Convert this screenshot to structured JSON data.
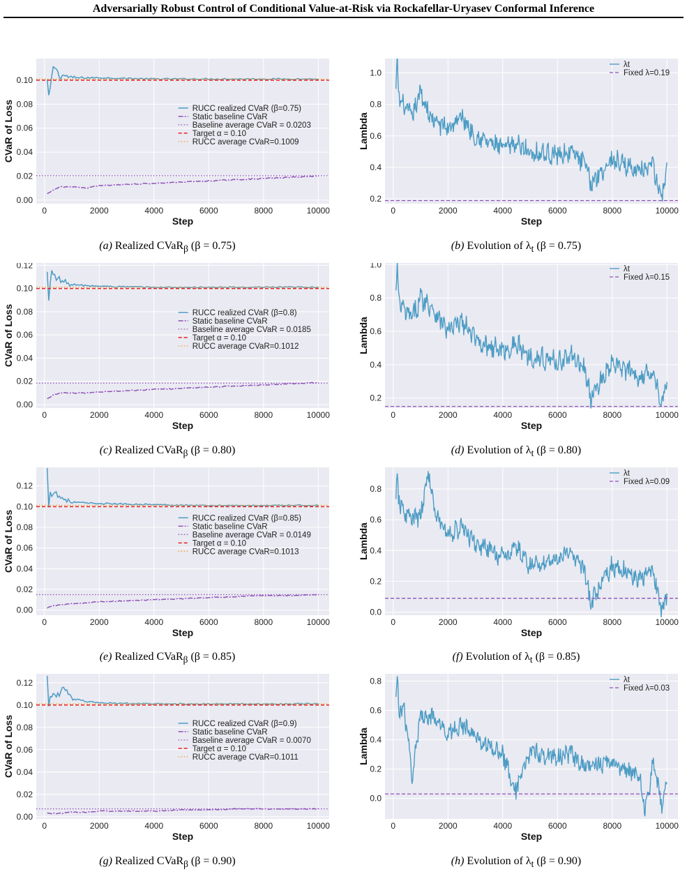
{
  "title": "Adversarially Robust Control of Conditional Value-at-Risk via Rockafellar-Uryasev Conformal Inference",
  "colors": {
    "rucc": "#4c9cc4",
    "baseline": "#8e52b8",
    "target": "#e8211f",
    "rucc_avg": "#f0a030",
    "bg": "#eaeaf2",
    "grid": "#ffffff"
  },
  "captions": [
    {
      "tag": "(a)",
      "text": "Realized CVaR",
      "sub": "β",
      "param": "(β = 0.75)"
    },
    {
      "tag": "(b)",
      "text": "Evolution of λ",
      "sub": "t",
      "param": "(β = 0.75)"
    },
    {
      "tag": "(c)",
      "text": "Realized CVaR",
      "sub": "β",
      "param": "(β = 0.80)"
    },
    {
      "tag": "(d)",
      "text": "Evolution of λ",
      "sub": "t",
      "param": "(β = 0.80)"
    },
    {
      "tag": "(e)",
      "text": "Realized CVaR",
      "sub": "β",
      "param": "(β = 0.85)"
    },
    {
      "tag": "(f)",
      "text": "Evolution of λ",
      "sub": "t",
      "param": "(β = 0.85)"
    },
    {
      "tag": "(g)",
      "text": "Realized CVaR",
      "sub": "β",
      "param": "(β = 0.90)"
    },
    {
      "tag": "(h)",
      "text": "Evolution of λ",
      "sub": "t",
      "param": "(β = 0.90)"
    }
  ],
  "chart_data": [
    {
      "type": "line",
      "xlabel": "Step",
      "ylabel": "CVaR of Loss",
      "xlim": [
        -300,
        10400
      ],
      "ylim": [
        -0.003,
        0.118
      ],
      "xticks": [
        0,
        2000,
        4000,
        6000,
        8000,
        10000
      ],
      "yticks": [
        0.0,
        0.02,
        0.04,
        0.06,
        0.08,
        0.1
      ],
      "legend": "center-right",
      "series": [
        {
          "name": "RUCC realized CVaR (β=0.75)",
          "x": [
            100,
            150,
            200,
            300,
            400,
            500,
            700,
            1000,
            2000,
            4000,
            6000,
            8000,
            10000
          ],
          "y": [
            0.099,
            0.081,
            0.092,
            0.107,
            0.113,
            0.104,
            0.104,
            0.102,
            0.102,
            0.101,
            0.101,
            0.101,
            0.1009
          ]
        },
        {
          "name": "Static baseline CVaR",
          "x": [
            100,
            300,
            600,
            1000,
            1500,
            2000,
            3000,
            4000,
            5000,
            6000,
            7000,
            8000,
            9000,
            10000
          ],
          "y": [
            0.005,
            0.008,
            0.011,
            0.011,
            0.01,
            0.012,
            0.013,
            0.014,
            0.015,
            0.016,
            0.017,
            0.018,
            0.019,
            0.02
          ]
        },
        {
          "name": "Baseline average CVaR = 0.0203",
          "hline": 0.0203
        },
        {
          "name": "Target α = 0.10",
          "hline": 0.1
        },
        {
          "name": "RUCC average CVaR=0.1009",
          "hline": 0.1009
        }
      ]
    },
    {
      "type": "line",
      "xlabel": "Step",
      "ylabel": "Lambda",
      "xlim": [
        -300,
        10400
      ],
      "ylim": [
        0.17,
        1.09
      ],
      "xticks": [
        0,
        2000,
        4000,
        6000,
        8000,
        10000
      ],
      "yticks": [
        0.2,
        0.4,
        0.6,
        0.8,
        1.0
      ],
      "legend": "top-right",
      "series": [
        {
          "name": "λt",
          "x": [
            100,
            150,
            200,
            400,
            700,
            1000,
            1400,
            2000,
            2500,
            3000,
            4000,
            4500,
            5000,
            6000,
            6500,
            7000,
            7200,
            8000,
            9000,
            9500,
            9800,
            10000
          ],
          "y": [
            0.88,
            1.07,
            0.85,
            0.78,
            0.72,
            0.88,
            0.7,
            0.65,
            0.72,
            0.6,
            0.52,
            0.55,
            0.5,
            0.48,
            0.5,
            0.42,
            0.3,
            0.45,
            0.38,
            0.4,
            0.19,
            0.4
          ]
        },
        {
          "name": "Fixed λ=0.19",
          "hline": 0.19
        }
      ]
    },
    {
      "type": "line",
      "xlabel": "Step",
      "ylabel": "CVaR of Loss",
      "xlim": [
        -300,
        10400
      ],
      "ylim": [
        -0.003,
        0.122
      ],
      "xticks": [
        0,
        2000,
        4000,
        6000,
        8000,
        10000
      ],
      "yticks": [
        0.0,
        0.02,
        0.04,
        0.06,
        0.08,
        0.1,
        0.12
      ],
      "legend": "center-right",
      "series": [
        {
          "name": "RUCC realized CVaR (β=0.8)",
          "x": [
            100,
            150,
            200,
            300,
            400,
            500,
            700,
            1000,
            2000,
            4000,
            6000,
            8000,
            10000
          ],
          "y": [
            0.112,
            0.087,
            0.105,
            0.116,
            0.112,
            0.108,
            0.106,
            0.103,
            0.102,
            0.101,
            0.101,
            0.101,
            0.1012
          ]
        },
        {
          "name": "Static baseline CVaR",
          "x": [
            100,
            300,
            600,
            1000,
            1500,
            2000,
            3000,
            4000,
            5000,
            6000,
            7000,
            8000,
            9000,
            10000
          ],
          "y": [
            0.005,
            0.008,
            0.01,
            0.01,
            0.01,
            0.011,
            0.012,
            0.013,
            0.014,
            0.015,
            0.016,
            0.017,
            0.018,
            0.019
          ]
        },
        {
          "name": "Baseline average CVaR = 0.0185",
          "hline": 0.0185
        },
        {
          "name": "Target α = 0.10",
          "hline": 0.1
        },
        {
          "name": "RUCC average CVaR=0.1012",
          "hline": 0.1012
        }
      ]
    },
    {
      "type": "line",
      "xlabel": "Step",
      "ylabel": "Lambda",
      "xlim": [
        -300,
        10400
      ],
      "ylim": [
        0.14,
        1.01
      ],
      "xticks": [
        0,
        2000,
        4000,
        6000,
        8000,
        10000
      ],
      "yticks": [
        0.2,
        0.4,
        0.6,
        0.8,
        1.0
      ],
      "legend": "top-right",
      "series": [
        {
          "name": "λt",
          "x": [
            100,
            150,
            200,
            400,
            700,
            1000,
            1400,
            2000,
            2500,
            3000,
            4000,
            4500,
            5000,
            6000,
            6500,
            7000,
            7200,
            8000,
            9000,
            9500,
            9800,
            10000
          ],
          "y": [
            0.82,
            0.98,
            0.78,
            0.72,
            0.68,
            0.8,
            0.75,
            0.6,
            0.66,
            0.55,
            0.48,
            0.52,
            0.45,
            0.42,
            0.45,
            0.38,
            0.2,
            0.4,
            0.33,
            0.36,
            0.16,
            0.28
          ]
        },
        {
          "name": "Fixed λ=0.15",
          "hline": 0.15
        }
      ]
    },
    {
      "type": "line",
      "xlabel": "Step",
      "ylabel": "CVaR of Loss",
      "xlim": [
        -300,
        10400
      ],
      "ylim": [
        -0.005,
        0.138
      ],
      "xticks": [
        0,
        2000,
        4000,
        6000,
        8000,
        10000
      ],
      "yticks": [
        0.0,
        0.02,
        0.04,
        0.06,
        0.08,
        0.1,
        0.12
      ],
      "legend": "center-right",
      "series": [
        {
          "name": "RUCC realized CVaR (β=0.85)",
          "x": [
            100,
            150,
            200,
            300,
            400,
            500,
            700,
            1000,
            2000,
            4000,
            6000,
            8000,
            10000
          ],
          "y": [
            0.134,
            0.102,
            0.118,
            0.112,
            0.115,
            0.11,
            0.108,
            0.104,
            0.103,
            0.102,
            0.101,
            0.101,
            0.1013
          ]
        },
        {
          "name": "Static baseline CVaR",
          "x": [
            100,
            300,
            600,
            1000,
            1500,
            2000,
            3000,
            4000,
            5000,
            6000,
            7000,
            8000,
            9000,
            10000
          ],
          "y": [
            0.002,
            0.004,
            0.005,
            0.006,
            0.007,
            0.008,
            0.009,
            0.01,
            0.011,
            0.012,
            0.013,
            0.014,
            0.014,
            0.015
          ]
        },
        {
          "name": "Baseline average CVaR = 0.0149",
          "hline": 0.0149
        },
        {
          "name": "Target α = 0.10",
          "hline": 0.1
        },
        {
          "name": "RUCC average CVaR=0.1013",
          "hline": 0.1013
        }
      ]
    },
    {
      "type": "line",
      "xlabel": "Step",
      "ylabel": "Lambda",
      "xlim": [
        -300,
        10400
      ],
      "ylim": [
        -0.02,
        0.94
      ],
      "xticks": [
        0,
        2000,
        4000,
        6000,
        8000,
        10000
      ],
      "yticks": [
        0.0,
        0.2,
        0.4,
        0.6,
        0.8
      ],
      "legend": "top-right",
      "series": [
        {
          "name": "λt",
          "x": [
            100,
            150,
            200,
            400,
            700,
            1000,
            1300,
            1500,
            2000,
            2500,
            3000,
            4000,
            4500,
            5000,
            6000,
            6500,
            7000,
            7200,
            8000,
            9000,
            9500,
            9800,
            10000
          ],
          "y": [
            0.7,
            0.88,
            0.72,
            0.65,
            0.6,
            0.62,
            0.92,
            0.65,
            0.5,
            0.55,
            0.45,
            0.35,
            0.42,
            0.3,
            0.35,
            0.38,
            0.28,
            0.05,
            0.3,
            0.22,
            0.28,
            0.0,
            0.12
          ]
        },
        {
          "name": "Fixed λ=0.09",
          "hline": 0.09
        }
      ]
    },
    {
      "type": "line",
      "xlabel": "Step",
      "ylabel": "CVaR of Loss",
      "xlim": [
        -300,
        10400
      ],
      "ylim": [
        -0.002,
        0.128
      ],
      "xticks": [
        0,
        2000,
        4000,
        6000,
        8000,
        10000
      ],
      "yticks": [
        0.0,
        0.02,
        0.04,
        0.06,
        0.08,
        0.1,
        0.12
      ],
      "legend": "center-right",
      "series": [
        {
          "name": "RUCC realized CVaR (β=0.9)",
          "x": [
            100,
            150,
            200,
            300,
            400,
            500,
            700,
            1000,
            2000,
            4000,
            6000,
            8000,
            10000
          ],
          "y": [
            0.122,
            0.094,
            0.113,
            0.108,
            0.11,
            0.107,
            0.118,
            0.105,
            0.102,
            0.101,
            0.101,
            0.101,
            0.1011
          ]
        },
        {
          "name": "Static baseline CVaR",
          "x": [
            100,
            300,
            600,
            1000,
            1500,
            2000,
            3000,
            4000,
            5000,
            6000,
            7000,
            8000,
            9000,
            10000
          ],
          "y": [
            0.003,
            0.003,
            0.003,
            0.004,
            0.004,
            0.005,
            0.005,
            0.005,
            0.006,
            0.006,
            0.007,
            0.007,
            0.007,
            0.007
          ]
        },
        {
          "name": "Baseline average CVaR = 0.0070",
          "hline": 0.007
        },
        {
          "name": "Target α = 0.10",
          "hline": 0.1
        },
        {
          "name": "RUCC average CVaR=0.1011",
          "hline": 0.1011
        }
      ]
    },
    {
      "type": "line",
      "xlabel": "Step",
      "ylabel": "Lambda",
      "xlim": [
        -300,
        10400
      ],
      "ylim": [
        -0.14,
        0.85
      ],
      "xticks": [
        0,
        2000,
        4000,
        6000,
        8000,
        10000
      ],
      "yticks": [
        0.0,
        0.2,
        0.4,
        0.6,
        0.8
      ],
      "legend": "top-right",
      "series": [
        {
          "name": "λt",
          "x": [
            100,
            150,
            200,
            400,
            700,
            1000,
            1400,
            2000,
            2500,
            3000,
            4000,
            4500,
            5000,
            6000,
            6500,
            7000,
            8000,
            9000,
            9200,
            9500,
            9800,
            10000
          ],
          "y": [
            0.65,
            0.83,
            0.62,
            0.6,
            0.15,
            0.58,
            0.55,
            0.45,
            0.5,
            0.42,
            0.3,
            0.05,
            0.32,
            0.28,
            0.3,
            0.22,
            0.25,
            0.15,
            -0.1,
            0.25,
            -0.05,
            0.12
          ]
        },
        {
          "name": "Fixed λ=0.03",
          "hline": 0.03
        }
      ]
    }
  ]
}
